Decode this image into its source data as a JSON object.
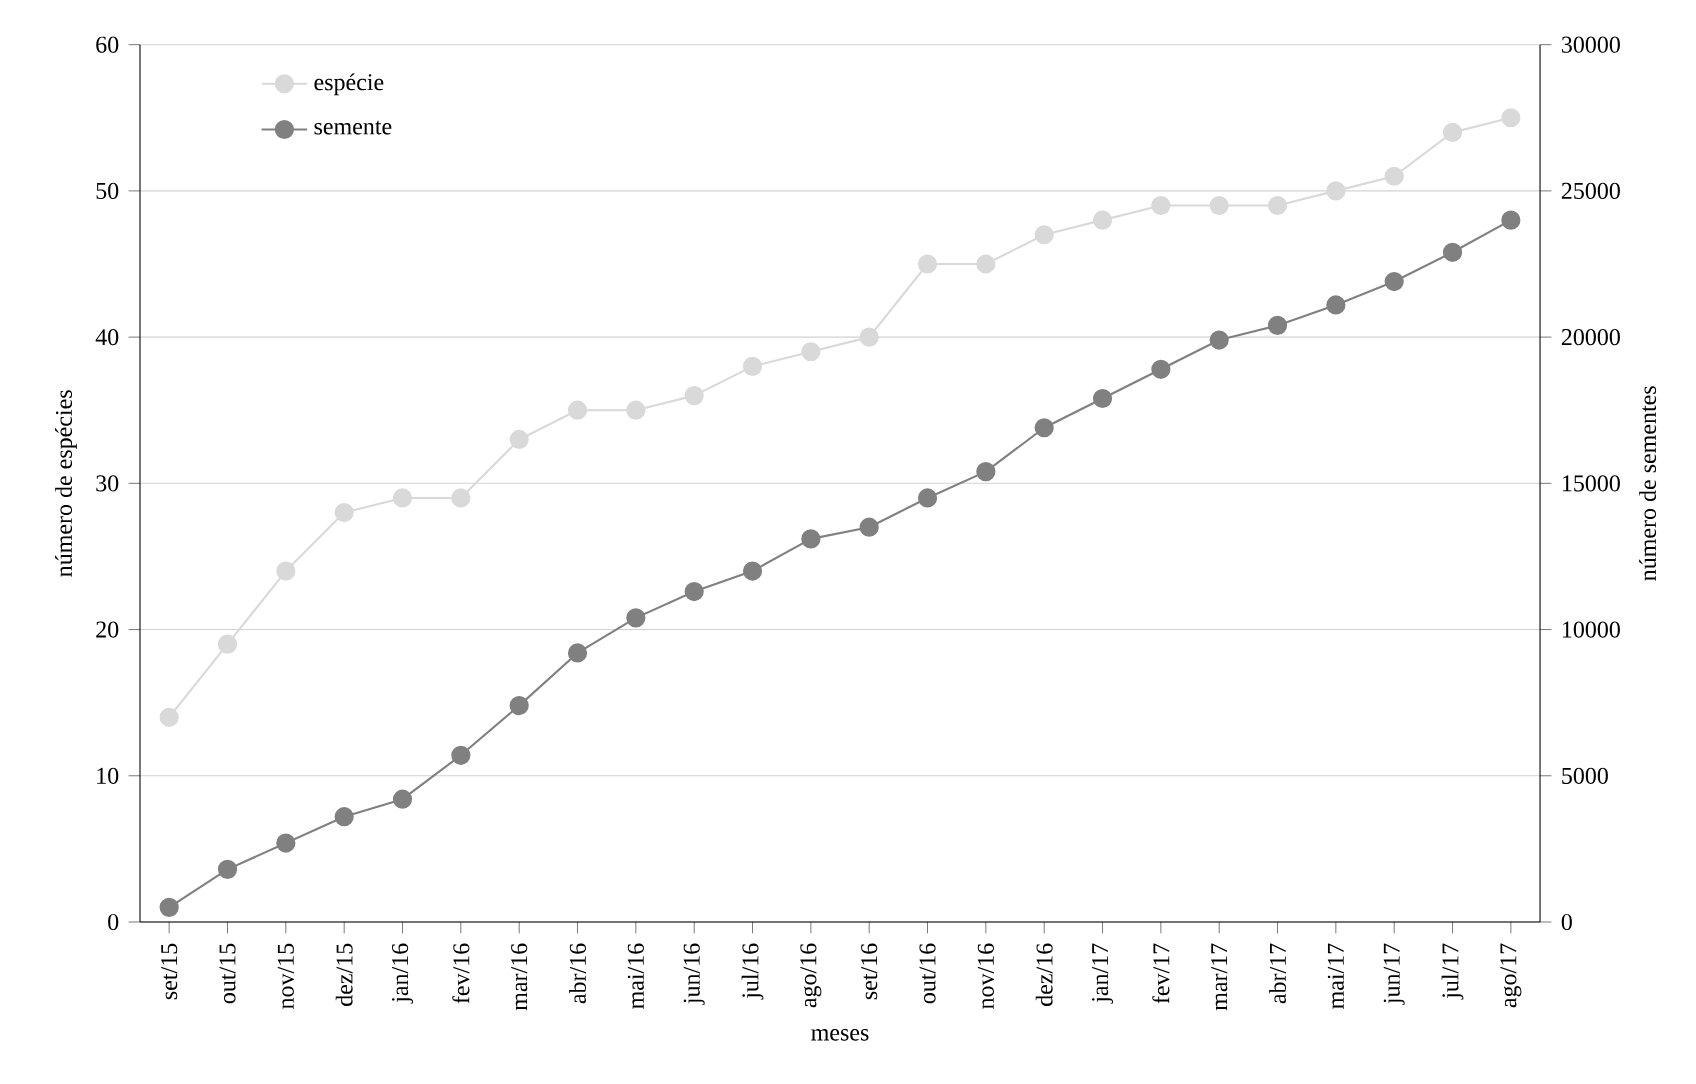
{
  "chart_data": {
    "type": "line",
    "xlabel": "meses",
    "ylabel": "número de espécies",
    "y2label": "número de sementes",
    "categories": [
      "set/15",
      "out/15",
      "nov/15",
      "dez/15",
      "jan/16",
      "fev/16",
      "mar/16",
      "abr/16",
      "mai/16",
      "jun/16",
      "jul/16",
      "ago/16",
      "set/16",
      "out/16",
      "nov/16",
      "dez/16",
      "jan/17",
      "fev/17",
      "mar/17",
      "abr/17",
      "mai/17",
      "jun/17",
      "jul/17",
      "ago/17"
    ],
    "series": [
      {
        "name": "espécie",
        "color": "#d9d9d9",
        "values": [
          14,
          19,
          24,
          28,
          29,
          29,
          33,
          35,
          35,
          36,
          38,
          39,
          40,
          45,
          45,
          47,
          48,
          49,
          49,
          49,
          50,
          51,
          54,
          55
        ]
      },
      {
        "name": "semente",
        "color": "#808080",
        "axis": "y2",
        "values": [
          500,
          1800,
          2700,
          3600,
          4200,
          5700,
          7400,
          9200,
          10400,
          11300,
          12000,
          13100,
          13500,
          14500,
          15400,
          16900,
          17900,
          18900,
          19900,
          20400,
          21100,
          21900,
          22900,
          24000
        ]
      }
    ],
    "ylim": [
      0,
      60
    ],
    "yticks": [
      0,
      10,
      20,
      30,
      40,
      50,
      60
    ],
    "y2lim": [
      0,
      30000
    ],
    "y2ticks": [
      0,
      5000,
      10000,
      15000,
      20000,
      25000,
      30000
    ],
    "grid": "y",
    "legend": "top left",
    "marker": "circle",
    "line_style": "solid"
  }
}
